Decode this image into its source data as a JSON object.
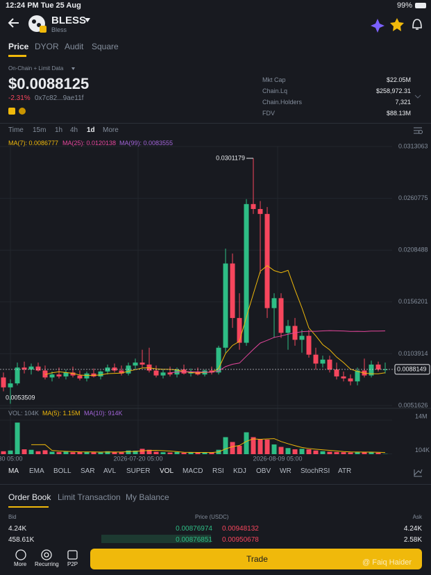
{
  "status_bar": {
    "time": "12:24 PM  Tue 25 Aug",
    "battery": "99%"
  },
  "header": {
    "symbol": "BLESS",
    "name": "Bless"
  },
  "tabs": [
    "Price",
    "DYOR",
    "Audit",
    "Square"
  ],
  "summary": {
    "data_source": "On-Chain + Limit Data",
    "price": "$0.0088125",
    "change": "-2.31%",
    "address": "0x7c82...9ae11f"
  },
  "stats": [
    {
      "label": "Mkt Cap",
      "value": "$22.05M"
    },
    {
      "label": "Chain.Lq",
      "value": "$258,972.31"
    },
    {
      "label": "Chain.Holders",
      "value": "7,321"
    },
    {
      "label": "FDV",
      "value": "$88.13M"
    }
  ],
  "timeframes": [
    "Time",
    "15m",
    "1h",
    "4h",
    "1d",
    "More"
  ],
  "ma_legend": [
    "MA(7): 0.0086777",
    "MA(25): 0.0120138",
    "MA(99): 0.0083555"
  ],
  "chart": {
    "type": "candlestick",
    "ylim": [
      0.0051626,
      0.0313063
    ],
    "yticks": [
      0.0313063,
      0.0260775,
      0.0208488,
      0.0156201,
      0.0103914,
      0.0051626
    ],
    "current": 0.0088149,
    "up_color": "#2ebd85",
    "down_color": "#f6465d",
    "candles": [
      [
        0.008,
        0.0085,
        0.0066,
        0.007
      ],
      [
        0.007,
        0.0078,
        0.0053509,
        0.0074
      ],
      [
        0.0074,
        0.0095,
        0.0072,
        0.009
      ],
      [
        0.009,
        0.0096,
        0.0084,
        0.0088
      ],
      [
        0.0088,
        0.0094,
        0.0083,
        0.0091
      ],
      [
        0.0091,
        0.0095,
        0.0086,
        0.0087
      ],
      [
        0.0087,
        0.0092,
        0.0078,
        0.008
      ],
      [
        0.008,
        0.0086,
        0.0076,
        0.0083
      ],
      [
        0.0083,
        0.009,
        0.0079,
        0.0081
      ],
      [
        0.0081,
        0.0088,
        0.0078,
        0.0085
      ],
      [
        0.0085,
        0.0091,
        0.008,
        0.0082
      ],
      [
        0.0082,
        0.0087,
        0.0077,
        0.0079
      ],
      [
        0.0079,
        0.0086,
        0.0076,
        0.0084
      ],
      [
        0.0084,
        0.0089,
        0.008,
        0.0081
      ],
      [
        0.0081,
        0.0087,
        0.0078,
        0.0086
      ],
      [
        0.0086,
        0.0093,
        0.0083,
        0.009
      ],
      [
        0.009,
        0.0094,
        0.0085,
        0.0087
      ],
      [
        0.0087,
        0.0092,
        0.0082,
        0.0084
      ],
      [
        0.0084,
        0.0095,
        0.0082,
        0.0092
      ],
      [
        0.0092,
        0.0099,
        0.0088,
        0.0095
      ],
      [
        0.0095,
        0.0108,
        0.009,
        0.0093
      ],
      [
        0.0093,
        0.011,
        0.0085,
        0.0087
      ],
      [
        0.0087,
        0.0092,
        0.008,
        0.0082
      ],
      [
        0.0082,
        0.0088,
        0.0079,
        0.0085
      ],
      [
        0.0085,
        0.0091,
        0.0081,
        0.0083
      ],
      [
        0.0083,
        0.009,
        0.008,
        0.0088
      ],
      [
        0.0088,
        0.0093,
        0.0083,
        0.0084
      ],
      [
        0.0084,
        0.0089,
        0.0081,
        0.0086
      ],
      [
        0.0086,
        0.009,
        0.0082,
        0.0083
      ],
      [
        0.0083,
        0.0088,
        0.0081,
        0.0087
      ],
      [
        0.0087,
        0.0091,
        0.0083,
        0.0085
      ],
      [
        0.0085,
        0.0112,
        0.0083,
        0.011
      ],
      [
        0.011,
        0.021,
        0.0105,
        0.0195
      ],
      [
        0.0195,
        0.0205,
        0.013,
        0.014
      ],
      [
        0.014,
        0.0165,
        0.0108,
        0.0115
      ],
      [
        0.0115,
        0.026,
        0.0112,
        0.0255
      ],
      [
        0.0255,
        0.0301179,
        0.0245,
        0.025
      ],
      [
        0.025,
        0.0258,
        0.0185,
        0.0245
      ],
      [
        0.0245,
        0.0252,
        0.014,
        0.015
      ],
      [
        0.015,
        0.0165,
        0.012,
        0.016
      ],
      [
        0.016,
        0.0165,
        0.012,
        0.0125
      ],
      [
        0.0125,
        0.0138,
        0.0108,
        0.0132
      ],
      [
        0.0132,
        0.014,
        0.0112,
        0.0118
      ],
      [
        0.0118,
        0.0128,
        0.0105,
        0.0122
      ],
      [
        0.0122,
        0.0128,
        0.01,
        0.0103
      ],
      [
        0.0103,
        0.011,
        0.0088,
        0.0094
      ],
      [
        0.0094,
        0.0102,
        0.009,
        0.0098
      ],
      [
        0.0098,
        0.0102,
        0.0085,
        0.0088
      ],
      [
        0.0088,
        0.0095,
        0.0078,
        0.0081
      ],
      [
        0.0081,
        0.0086,
        0.0076,
        0.0079
      ],
      [
        0.0079,
        0.0083,
        0.0072,
        0.0076
      ],
      [
        0.0076,
        0.009,
        0.0072,
        0.0087
      ],
      [
        0.0087,
        0.0099,
        0.008,
        0.0082
      ],
      [
        0.0082,
        0.0097,
        0.008,
        0.0093
      ],
      [
        0.0093,
        0.0096,
        0.0086,
        0.0088
      ],
      [
        0.0088,
        0.0095,
        0.0084,
        0.0088125
      ]
    ],
    "volume_legend": [
      "VOL: 104K",
      "MA(5): 1.15M",
      "MA(10): 914K"
    ],
    "vlim": [
      0,
      16
    ],
    "vticks": [
      {
        "value": 14,
        "label": "14M"
      },
      {
        "value": 0.104,
        "label": "104K"
      }
    ],
    "volumes": [
      1.2,
      1.5,
      13,
      2.0,
      1.8,
      1.2,
      1.6,
      1.0,
      0.9,
      1.1,
      0.8,
      1.0,
      0.9,
      0.8,
      0.7,
      1.2,
      0.9,
      0.8,
      1.5,
      1.4,
      2.2,
      1.8,
      1.0,
      0.8,
      0.7,
      0.9,
      0.6,
      0.7,
      0.6,
      0.8,
      0.7,
      1.8,
      7,
      5,
      3.5,
      9,
      7,
      6,
      6,
      4,
      3,
      2.5,
      2,
      2.2,
      2.0,
      1.5,
      1.2,
      1.0,
      0.9,
      0.8,
      0.7,
      1.0,
      0.9,
      0.8,
      0.6,
      0.104
    ],
    "x_labels": [
      "30 05:00",
      "2026-07-20 05:00",
      "2026-08-09 05:00"
    ]
  },
  "indicators": [
    "MA",
    "EMA",
    "BOLL",
    "SAR",
    "AVL",
    "SUPER",
    "VOL",
    "MACD",
    "RSI",
    "KDJ",
    "OBV",
    "WR",
    "StochRSI",
    "ATR"
  ],
  "order_tabs": [
    "Order Book",
    "Limit Transaction",
    "My Balance"
  ],
  "order_book": {
    "headers": [
      "Bid",
      "Price (USDC)",
      "Ask"
    ],
    "rows": [
      [
        "4.24K",
        "0.00876974",
        "0.00948132",
        "4.24K"
      ],
      [
        "458.61K",
        "0.00876851",
        "0.00950678",
        "2.58K"
      ]
    ]
  },
  "bottom_bar": {
    "items": [
      "More",
      "Recurring",
      "P2P"
    ],
    "trade": "Trade"
  },
  "watermark": "@ Faiq Haider"
}
